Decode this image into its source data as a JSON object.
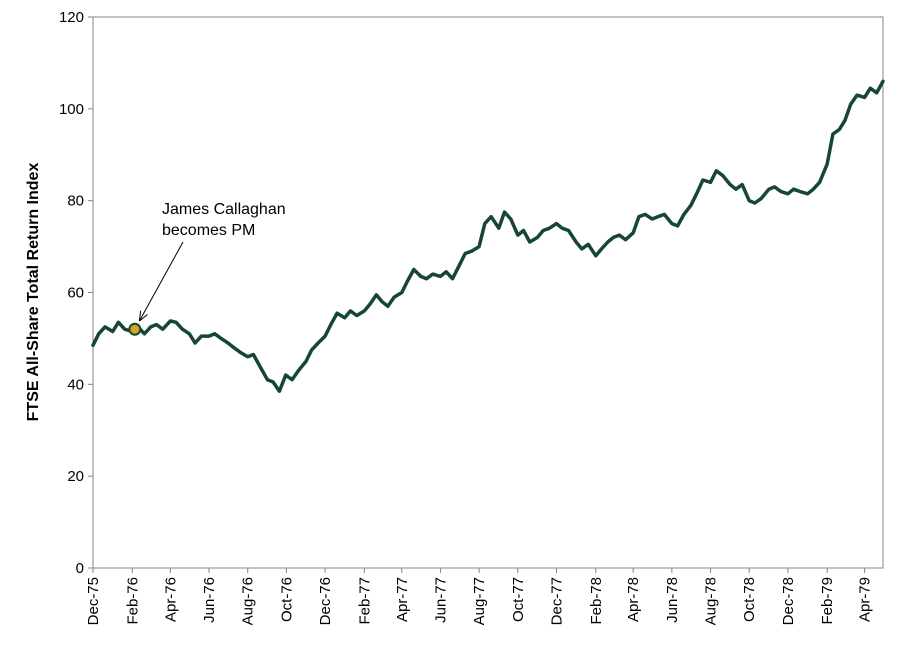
{
  "chart_data": {
    "type": "line",
    "title": "",
    "xlabel": "",
    "ylabel": "FTSE All-Share Total Return Index",
    "ylim": [
      0,
      120
    ],
    "yticks": [
      0,
      20,
      40,
      60,
      80,
      100,
      120
    ],
    "xlim": [
      "1975-12-01",
      "1979-04-30"
    ],
    "xticks": [
      {
        "date": "1975-12-01",
        "label": "Dec-75"
      },
      {
        "date": "1976-02-01",
        "label": "Feb-76"
      },
      {
        "date": "1976-04-01",
        "label": "Apr-76"
      },
      {
        "date": "1976-06-01",
        "label": "Jun-76"
      },
      {
        "date": "1976-08-01",
        "label": "Aug-76"
      },
      {
        "date": "1976-10-01",
        "label": "Oct-76"
      },
      {
        "date": "1976-12-01",
        "label": "Dec-76"
      },
      {
        "date": "1977-02-01",
        "label": "Feb-77"
      },
      {
        "date": "1977-04-01",
        "label": "Apr-77"
      },
      {
        "date": "1977-06-01",
        "label": "Jun-77"
      },
      {
        "date": "1977-08-01",
        "label": "Aug-77"
      },
      {
        "date": "1977-10-01",
        "label": "Oct-77"
      },
      {
        "date": "1977-12-01",
        "label": "Dec-77"
      },
      {
        "date": "1978-02-01",
        "label": "Feb-78"
      },
      {
        "date": "1978-04-01",
        "label": "Apr-78"
      },
      {
        "date": "1978-06-01",
        "label": "Jun-78"
      },
      {
        "date": "1978-08-01",
        "label": "Aug-78"
      },
      {
        "date": "1978-10-01",
        "label": "Oct-78"
      },
      {
        "date": "1978-12-01",
        "label": "Dec-78"
      },
      {
        "date": "1979-02-01",
        "label": "Feb-79"
      },
      {
        "date": "1979-04-01",
        "label": "Apr-79"
      }
    ],
    "grid": false,
    "legend": "none",
    "line_color": "#154734",
    "series": [
      {
        "points": [
          [
            "1975-12-01",
            48.5
          ],
          [
            "1975-12-10",
            51.0
          ],
          [
            "1975-12-20",
            52.5
          ],
          [
            "1976-01-01",
            51.5
          ],
          [
            "1976-01-10",
            53.5
          ],
          [
            "1976-01-20",
            52.0
          ],
          [
            "1976-02-01",
            51.5
          ],
          [
            "1976-02-10",
            52.5
          ],
          [
            "1976-02-20",
            51.0
          ],
          [
            "1976-03-01",
            52.5
          ],
          [
            "1976-03-10",
            53.0
          ],
          [
            "1976-03-20",
            52.0
          ],
          [
            "1976-04-01",
            53.8
          ],
          [
            "1976-04-10",
            53.5
          ],
          [
            "1976-04-20",
            52.0
          ],
          [
            "1976-05-01",
            51.0
          ],
          [
            "1976-05-10",
            49.0
          ],
          [
            "1976-05-20",
            50.5
          ],
          [
            "1976-06-01",
            50.5
          ],
          [
            "1976-06-10",
            51.0
          ],
          [
            "1976-06-20",
            50.0
          ],
          [
            "1976-07-01",
            49.0
          ],
          [
            "1976-07-10",
            48.0
          ],
          [
            "1976-07-20",
            47.0
          ],
          [
            "1976-08-01",
            46.0
          ],
          [
            "1976-08-10",
            46.5
          ],
          [
            "1976-08-20",
            44.0
          ],
          [
            "1976-09-01",
            41.0
          ],
          [
            "1976-09-10",
            40.5
          ],
          [
            "1976-09-20",
            38.5
          ],
          [
            "1976-09-30",
            42.0
          ],
          [
            "1976-10-10",
            41.0
          ],
          [
            "1976-10-20",
            43.0
          ],
          [
            "1976-11-01",
            45.0
          ],
          [
            "1976-11-10",
            47.5
          ],
          [
            "1976-11-20",
            49.0
          ],
          [
            "1976-12-01",
            50.5
          ],
          [
            "1976-12-10",
            53.0
          ],
          [
            "1976-12-20",
            55.5
          ],
          [
            "1977-01-01",
            54.5
          ],
          [
            "1977-01-10",
            56.0
          ],
          [
            "1977-01-20",
            55.0
          ],
          [
            "1977-02-01",
            56.0
          ],
          [
            "1977-02-10",
            57.5
          ],
          [
            "1977-02-20",
            59.5
          ],
          [
            "1977-03-01",
            58.0
          ],
          [
            "1977-03-10",
            57.0
          ],
          [
            "1977-03-20",
            59.0
          ],
          [
            "1977-04-01",
            60.0
          ],
          [
            "1977-04-10",
            62.5
          ],
          [
            "1977-04-20",
            65.0
          ],
          [
            "1977-05-01",
            63.5
          ],
          [
            "1977-05-10",
            63.0
          ],
          [
            "1977-05-20",
            64.0
          ],
          [
            "1977-06-01",
            63.5
          ],
          [
            "1977-06-10",
            64.5
          ],
          [
            "1977-06-20",
            63.0
          ],
          [
            "1977-07-01",
            66.0
          ],
          [
            "1977-07-10",
            68.5
          ],
          [
            "1977-07-20",
            69.0
          ],
          [
            "1977-08-01",
            70.0
          ],
          [
            "1977-08-10",
            75.0
          ],
          [
            "1977-08-20",
            76.5
          ],
          [
            "1977-09-01",
            74.0
          ],
          [
            "1977-09-10",
            77.5
          ],
          [
            "1977-09-20",
            76.0
          ],
          [
            "1977-10-01",
            72.5
          ],
          [
            "1977-10-10",
            73.5
          ],
          [
            "1977-10-20",
            71.0
          ],
          [
            "1977-11-01",
            72.0
          ],
          [
            "1977-11-10",
            73.5
          ],
          [
            "1977-11-20",
            74.0
          ],
          [
            "1977-12-01",
            75.0
          ],
          [
            "1977-12-10",
            74.0
          ],
          [
            "1977-12-20",
            73.5
          ],
          [
            "1978-01-01",
            71.0
          ],
          [
            "1978-01-10",
            69.5
          ],
          [
            "1978-01-20",
            70.5
          ],
          [
            "1978-02-01",
            68.0
          ],
          [
            "1978-02-10",
            69.5
          ],
          [
            "1978-02-20",
            71.0
          ],
          [
            "1978-03-01",
            72.0
          ],
          [
            "1978-03-10",
            72.5
          ],
          [
            "1978-03-20",
            71.5
          ],
          [
            "1978-04-01",
            73.0
          ],
          [
            "1978-04-10",
            76.5
          ],
          [
            "1978-04-20",
            77.0
          ],
          [
            "1978-05-01",
            76.0
          ],
          [
            "1978-05-10",
            76.5
          ],
          [
            "1978-05-20",
            77.0
          ],
          [
            "1978-06-01",
            75.0
          ],
          [
            "1978-06-10",
            74.5
          ],
          [
            "1978-06-20",
            77.0
          ],
          [
            "1978-07-01",
            79.0
          ],
          [
            "1978-07-10",
            81.5
          ],
          [
            "1978-07-20",
            84.5
          ],
          [
            "1978-08-01",
            84.0
          ],
          [
            "1978-08-10",
            86.5
          ],
          [
            "1978-08-20",
            85.5
          ],
          [
            "1978-09-01",
            83.5
          ],
          [
            "1978-09-10",
            82.5
          ],
          [
            "1978-09-20",
            83.5
          ],
          [
            "1978-10-01",
            80.0
          ],
          [
            "1978-10-10",
            79.5
          ],
          [
            "1978-10-20",
            80.5
          ],
          [
            "1978-11-01",
            82.5
          ],
          [
            "1978-11-10",
            83.0
          ],
          [
            "1978-11-20",
            82.0
          ],
          [
            "1978-12-01",
            81.5
          ],
          [
            "1978-12-10",
            82.5
          ],
          [
            "1978-12-20",
            82.0
          ],
          [
            "1979-01-01",
            81.5
          ],
          [
            "1979-01-10",
            82.5
          ],
          [
            "1979-01-20",
            84.0
          ],
          [
            "1979-02-01",
            88.0
          ],
          [
            "1979-02-10",
            94.5
          ],
          [
            "1979-02-20",
            95.5
          ],
          [
            "1979-03-01",
            97.5
          ],
          [
            "1979-03-10",
            101.0
          ],
          [
            "1979-03-20",
            103.0
          ],
          [
            "1979-04-01",
            102.5
          ],
          [
            "1979-04-10",
            104.5
          ],
          [
            "1979-04-20",
            103.5
          ],
          [
            "1979-04-30",
            106.0
          ]
        ]
      }
    ],
    "annotations": [
      {
        "text_lines": [
          "James Callaghan",
          "becomes PM"
        ],
        "date": "1976-02-05",
        "value": 52.0,
        "marker_color": "#d4a520",
        "marker_edge_color": "#154734"
      }
    ]
  }
}
